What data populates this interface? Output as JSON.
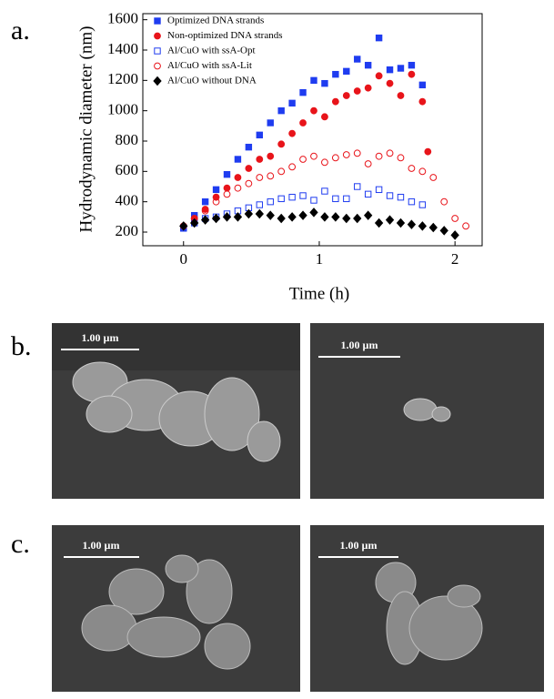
{
  "panel_labels": [
    "a.",
    "b.",
    "c."
  ],
  "chart_data": {
    "type": "scatter",
    "xlabel": "Time (h)",
    "ylabel": "Hydrodynamic diameter (nm)",
    "xlim": [
      -0.3,
      2.2
    ],
    "ylim": [
      110,
      1640
    ],
    "xticks": [
      0,
      1,
      2
    ],
    "yticks": [
      200,
      400,
      600,
      800,
      1000,
      1200,
      1400,
      1600
    ],
    "grid": false,
    "legend": "upper left",
    "series": [
      {
        "name": "Optimized DNA strands",
        "color": "#1f3cf0",
        "marker": "square",
        "filled": true,
        "x": [
          0,
          0.08,
          0.16,
          0.24,
          0.32,
          0.4,
          0.48,
          0.56,
          0.64,
          0.72,
          0.8,
          0.88,
          0.96,
          1.04,
          1.12,
          1.2,
          1.28,
          1.36,
          1.44,
          1.52,
          1.6,
          1.68,
          1.76
        ],
        "values": [
          230,
          310,
          400,
          480,
          580,
          680,
          760,
          840,
          920,
          1000,
          1050,
          1120,
          1200,
          1180,
          1240,
          1260,
          1340,
          1300,
          1480,
          1270,
          1280,
          1300,
          1170
        ]
      },
      {
        "name": "Non-optimized DNA strands",
        "color": "#e8141a",
        "marker": "circle",
        "filled": true,
        "x": [
          0,
          0.08,
          0.16,
          0.24,
          0.32,
          0.4,
          0.48,
          0.56,
          0.64,
          0.72,
          0.8,
          0.88,
          0.96,
          1.04,
          1.12,
          1.2,
          1.28,
          1.36,
          1.44,
          1.52,
          1.6,
          1.68,
          1.76,
          1.8
        ],
        "values": [
          240,
          290,
          350,
          430,
          490,
          560,
          620,
          680,
          700,
          780,
          850,
          920,
          1000,
          960,
          1060,
          1100,
          1130,
          1150,
          1230,
          1180,
          1100,
          1240,
          1060,
          730
        ]
      },
      {
        "name": "Al/CuO with ssA-Opt",
        "color": "#1f3cf0",
        "marker": "square",
        "filled": false,
        "x": [
          0,
          0.08,
          0.16,
          0.24,
          0.32,
          0.4,
          0.48,
          0.56,
          0.64,
          0.72,
          0.8,
          0.88,
          0.96,
          1.04,
          1.12,
          1.2,
          1.28,
          1.36,
          1.44,
          1.52,
          1.6,
          1.68,
          1.76
        ],
        "values": [
          225,
          260,
          290,
          300,
          320,
          340,
          360,
          380,
          400,
          420,
          430,
          440,
          410,
          470,
          420,
          420,
          500,
          450,
          480,
          440,
          430,
          400,
          380
        ]
      },
      {
        "name": "Al/CuO with ssA-Lit",
        "color": "#e8141a",
        "marker": "circle",
        "filled": false,
        "x": [
          0,
          0.08,
          0.16,
          0.24,
          0.32,
          0.4,
          0.48,
          0.56,
          0.64,
          0.72,
          0.8,
          0.88,
          0.96,
          1.04,
          1.12,
          1.2,
          1.28,
          1.36,
          1.44,
          1.52,
          1.6,
          1.68,
          1.76,
          1.84,
          1.92,
          2.0,
          2.08
        ],
        "values": [
          240,
          290,
          340,
          400,
          450,
          490,
          520,
          560,
          570,
          600,
          630,
          680,
          700,
          660,
          690,
          710,
          720,
          650,
          700,
          720,
          690,
          620,
          600,
          560,
          400,
          290,
          240
        ]
      },
      {
        "name": "Al/CuO without DNA",
        "color": "#000000",
        "marker": "diamond",
        "filled": true,
        "x": [
          0,
          0.08,
          0.16,
          0.24,
          0.32,
          0.4,
          0.48,
          0.56,
          0.64,
          0.72,
          0.8,
          0.88,
          0.96,
          1.04,
          1.12,
          1.2,
          1.28,
          1.36,
          1.44,
          1.52,
          1.6,
          1.68,
          1.76,
          1.84,
          1.92,
          2.0
        ],
        "values": [
          240,
          260,
          280,
          290,
          300,
          300,
          320,
          320,
          310,
          290,
          300,
          310,
          330,
          300,
          300,
          290,
          290,
          310,
          260,
          280,
          260,
          250,
          240,
          230,
          210,
          180
        ]
      }
    ]
  },
  "sem_images": {
    "scale_bars": [
      "1.00 µm",
      "1.00 µm",
      "1.00 µm",
      "1.00 µm"
    ]
  }
}
